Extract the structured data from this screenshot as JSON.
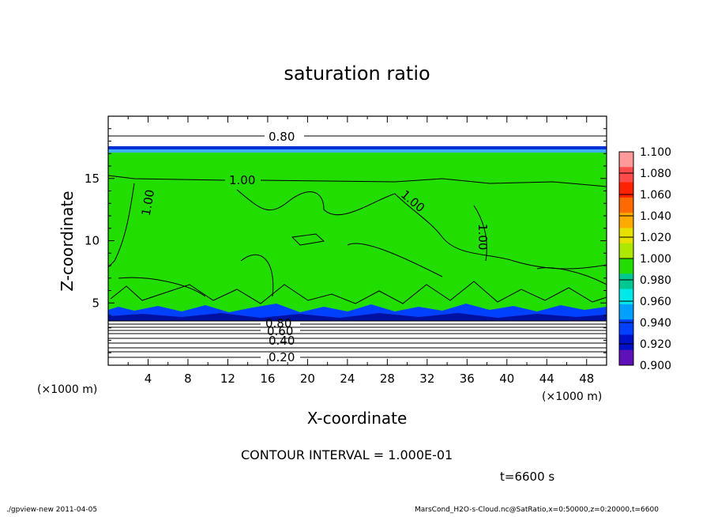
{
  "chart_data": {
    "type": "heatmap",
    "title": "saturation ratio",
    "xlabel": "X-coordinate",
    "ylabel": "Z-coordinate",
    "x_unit": "(×1000 m)",
    "y_unit": "(×1000 m)",
    "xlim": [
      0,
      50
    ],
    "ylim": [
      0,
      20
    ],
    "x_ticks": [
      "4",
      "8",
      "12",
      "16",
      "20",
      "24",
      "28",
      "32",
      "36",
      "40",
      "44",
      "48"
    ],
    "y_ticks": [
      "5",
      "10",
      "15"
    ],
    "colorbar": {
      "levels": [
        "1.100",
        "1.080",
        "1.060",
        "1.040",
        "1.020",
        "1.000",
        "0.980",
        "0.960",
        "0.940",
        "0.920",
        "0.900"
      ],
      "colors": [
        "#ff9a9a",
        "#ff4a4a",
        "#ff2200",
        "#ff6a00",
        "#ffaa00",
        "#e8e000",
        "#aee800",
        "#22dd00",
        "#00c890",
        "#00e8e8",
        "#00a0ff",
        "#0040ff",
        "#0010c8",
        "#6010b8"
      ]
    },
    "contour_labels": [
      "0.80",
      "1.00",
      "1.00",
      "1.00",
      "1.00",
      "0.80",
      "0.60",
      "0.40",
      "0.20"
    ],
    "contour_interval": "CONTOUR INTERVAL = 1.000E-01",
    "time": "t=6600 s"
  },
  "footer": {
    "left": "./gpview-new  2011-04-05",
    "right": "MarsCond_H2O-s-Cloud.nc@SatRatio,x=0:50000,z=0:20000,t=6600"
  }
}
